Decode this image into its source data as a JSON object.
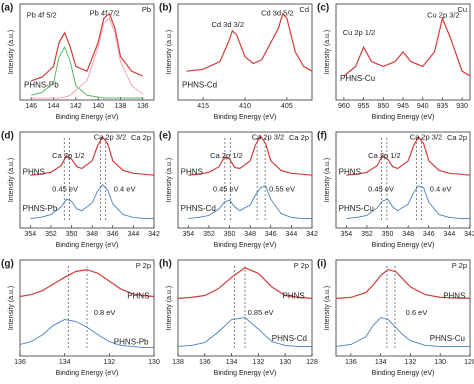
{
  "chart_data": [
    {
      "type": "line",
      "panel_label": "(a)",
      "title": "Pb",
      "xlabel": "Binding Energy (eV)",
      "ylabel": "Intensity (a.u.)",
      "xlim": [
        147,
        135
      ],
      "xticks": [
        146,
        144,
        142,
        140,
        138,
        136
      ],
      "ylim": [
        0,
        100
      ],
      "annotations": [
        "Pb 4f 5/2",
        "Pb 4f 7/2"
      ],
      "x": [
        146,
        145,
        144,
        143.5,
        143,
        142.5,
        142,
        141,
        140,
        139.5,
        139,
        138.5,
        138,
        137,
        136
      ],
      "series": [
        {
          "name": "PHNS-Pb",
          "color": "#d23c3c",
          "values": [
            20,
            24,
            35,
            60,
            70,
            55,
            35,
            30,
            60,
            85,
            90,
            75,
            45,
            30,
            25
          ]
        },
        {
          "color": "#4caf50",
          "values": [
            5,
            8,
            18,
            45,
            55,
            40,
            15,
            5,
            3,
            2,
            2,
            2,
            2,
            2,
            2
          ]
        },
        {
          "color": "#f0a0b0",
          "values": [
            2,
            2,
            2,
            2,
            3,
            5,
            10,
            20,
            55,
            80,
            85,
            70,
            40,
            15,
            6
          ]
        }
      ]
    },
    {
      "type": "line",
      "panel_label": "(b)",
      "title": "Cd",
      "xlabel": "Binding Energy (eV)",
      "ylabel": "Intensity (a.u.)",
      "xlim": [
        418,
        402
      ],
      "xticks": [
        415,
        410,
        405
      ],
      "ylim": [
        0,
        100
      ],
      "annotations": [
        "Cd 3d 3/2",
        "Cd 3d 5/2"
      ],
      "x": [
        417,
        415,
        413,
        412,
        411.5,
        411,
        410,
        409,
        408,
        406,
        405.5,
        405,
        404,
        403,
        402
      ],
      "series": [
        {
          "name": "PHNS-Cd",
          "color": "#d23c3c",
          "values": [
            30,
            32,
            40,
            60,
            72,
            68,
            45,
            38,
            42,
            75,
            90,
            85,
            50,
            35,
            30
          ]
        }
      ]
    },
    {
      "type": "line",
      "panel_label": "(c)",
      "title": "Cu",
      "xlabel": "Binding Energy (eV)",
      "ylabel": "Intensity (a.u.)",
      "xlim": [
        962,
        928
      ],
      "xticks": [
        960,
        955,
        950,
        945,
        940,
        935,
        930
      ],
      "ylim": [
        0,
        100
      ],
      "annotations": [
        "Cu 2p 1/2",
        "Cu 2p 3/2"
      ],
      "x": [
        960,
        957,
        955,
        953,
        950,
        947,
        945,
        943,
        940,
        937,
        935,
        933,
        930,
        928
      ],
      "series": [
        {
          "name": "PHNS-Cu",
          "color": "#d23c3c",
          "values": [
            25,
            35,
            55,
            40,
            35,
            40,
            50,
            40,
            35,
            50,
            85,
            65,
            30,
            25
          ]
        }
      ]
    },
    {
      "type": "line",
      "panel_label": "(d)",
      "title": "Ca 2p",
      "xlabel": "Binding Energy (eV)",
      "ylabel": "Intensity (a.u.)",
      "xlim": [
        355,
        342
      ],
      "xticks": [
        354,
        352,
        350,
        348,
        346,
        344,
        342
      ],
      "ylim": [
        0,
        100
      ],
      "annotations": [
        "Ca 2p 1/2",
        "Ca 2p 3/2",
        "0.45 eV",
        "0.4 eV"
      ],
      "x": [
        354,
        353,
        352,
        351,
        350.5,
        350,
        349.5,
        349,
        348,
        347.5,
        347,
        346.5,
        346,
        345,
        344,
        343,
        342
      ],
      "series": [
        {
          "name": "PHNS",
          "color": "#d23c3c",
          "values": [
            55,
            56,
            58,
            65,
            75,
            72,
            64,
            62,
            70,
            85,
            95,
            88,
            70,
            60,
            57,
            56,
            55
          ]
        },
        {
          "name": "PHNS-Pb",
          "color": "#4a7fc0",
          "values": [
            10,
            11,
            14,
            22,
            30,
            28,
            20,
            18,
            26,
            38,
            45,
            40,
            25,
            14,
            11,
            10,
            10
          ]
        }
      ]
    },
    {
      "type": "line",
      "panel_label": "(e)",
      "title": "Ca 2p",
      "xlabel": "Binding Energy (eV)",
      "ylabel": "Intensity (a.u.)",
      "xlim": [
        355,
        342
      ],
      "xticks": [
        354,
        352,
        350,
        348,
        346,
        344,
        342
      ],
      "ylim": [
        0,
        100
      ],
      "annotations": [
        "Ca 2p 1/2",
        "Ca 2p 3/2",
        "0.45 eV",
        "0.55 eV"
      ],
      "x": [
        354,
        353,
        352,
        351,
        350.5,
        350,
        349.5,
        349,
        348,
        347.5,
        347,
        346.5,
        346,
        345,
        344,
        343,
        342
      ],
      "series": [
        {
          "name": "PHNS",
          "color": "#d23c3c",
          "values": [
            55,
            56,
            58,
            64,
            74,
            72,
            63,
            62,
            70,
            86,
            96,
            88,
            70,
            60,
            57,
            56,
            55
          ]
        },
        {
          "name": "PHNS-Cd",
          "color": "#4a7fc0",
          "values": [
            10,
            11,
            13,
            20,
            27,
            29,
            22,
            18,
            24,
            34,
            42,
            44,
            30,
            15,
            11,
            10,
            10
          ]
        }
      ]
    },
    {
      "type": "line",
      "panel_label": "(f)",
      "title": "Ca 2p",
      "xlabel": "Binding Energy (eV)",
      "ylabel": "Intensity (a.u.)",
      "xlim": [
        355,
        342
      ],
      "xticks": [
        354,
        352,
        350,
        348,
        346,
        344,
        342
      ],
      "ylim": [
        0,
        100
      ],
      "annotations": [
        "Ca 2p 1/2",
        "Ca 2p 3/2",
        "0.45 eV",
        "0.4 eV"
      ],
      "x": [
        354,
        353,
        352,
        351,
        350.5,
        350,
        349.5,
        349,
        348,
        347.5,
        347,
        346.5,
        346,
        345,
        344,
        343,
        342
      ],
      "series": [
        {
          "name": "PHNS",
          "color": "#d23c3c",
          "values": [
            55,
            56,
            58,
            65,
            75,
            72,
            64,
            62,
            70,
            85,
            95,
            88,
            70,
            60,
            57,
            56,
            55
          ]
        },
        {
          "name": "PHNS-Cu",
          "color": "#4a7fc0",
          "values": [
            10,
            11,
            13,
            21,
            28,
            30,
            22,
            18,
            25,
            36,
            44,
            42,
            27,
            14,
            11,
            10,
            10
          ]
        }
      ]
    },
    {
      "type": "line",
      "panel_label": "(g)",
      "title": "P 2p",
      "xlabel": "Binding Energy (eV)",
      "ylabel": "Intensity (a.u.)",
      "xlim": [
        136,
        130
      ],
      "xticks": [
        136,
        134,
        132,
        130
      ],
      "ylim": [
        0,
        100
      ],
      "annotations": [
        "0.8 eV"
      ],
      "x": [
        136,
        135.5,
        135,
        134.5,
        134,
        133.5,
        133,
        132.5,
        132,
        131.5,
        131,
        130.5,
        130
      ],
      "series": [
        {
          "name": "PHNS",
          "color": "#d23c3c",
          "values": [
            62,
            64,
            68,
            75,
            82,
            88,
            90,
            86,
            78,
            70,
            65,
            63,
            62
          ]
        },
        {
          "name": "PHNS-Pb",
          "color": "#4a7fc0",
          "values": [
            12,
            15,
            22,
            32,
            38,
            36,
            30,
            22,
            15,
            11,
            10,
            9,
            9
          ]
        }
      ]
    },
    {
      "type": "line",
      "panel_label": "(h)",
      "title": "P 2p",
      "xlabel": "Binding Energy (eV)",
      "ylabel": "Intensity (a.u.)",
      "xlim": [
        138,
        128
      ],
      "xticks": [
        138,
        136,
        134,
        132,
        130,
        128
      ],
      "ylim": [
        0,
        100
      ],
      "annotations": [
        "0.85 eV"
      ],
      "x": [
        138,
        137,
        136,
        135,
        134,
        133,
        132,
        131,
        130,
        129,
        128
      ],
      "series": [
        {
          "name": "PHNS",
          "color": "#d23c3c",
          "values": [
            60,
            61,
            63,
            70,
            82,
            92,
            86,
            72,
            63,
            61,
            60
          ]
        },
        {
          "name": "PHNS-Cd",
          "color": "#4a7fc0",
          "values": [
            10,
            11,
            14,
            25,
            38,
            40,
            28,
            15,
            11,
            10,
            10
          ]
        }
      ]
    },
    {
      "type": "line",
      "panel_label": "(i)",
      "title": "P 2p",
      "xlabel": "Binding Energy (eV)",
      "ylabel": "Intensity (a.u.)",
      "xlim": [
        137,
        128
      ],
      "xticks": [
        136,
        134,
        132,
        130,
        128
      ],
      "ylim": [
        0,
        100
      ],
      "annotations": [
        "0.6 eV"
      ],
      "x": [
        137,
        136,
        135,
        134.5,
        134,
        133.5,
        133,
        132.5,
        132,
        131,
        130,
        128
      ],
      "series": [
        {
          "name": "PHNS",
          "color": "#d23c3c",
          "values": [
            60,
            61,
            66,
            74,
            84,
            90,
            88,
            80,
            72,
            64,
            61,
            60
          ]
        },
        {
          "name": "PHNS-Cu",
          "color": "#4a7fc0",
          "values": [
            10,
            12,
            20,
            32,
            40,
            38,
            30,
            22,
            16,
            11,
            10,
            10
          ]
        }
      ]
    }
  ]
}
